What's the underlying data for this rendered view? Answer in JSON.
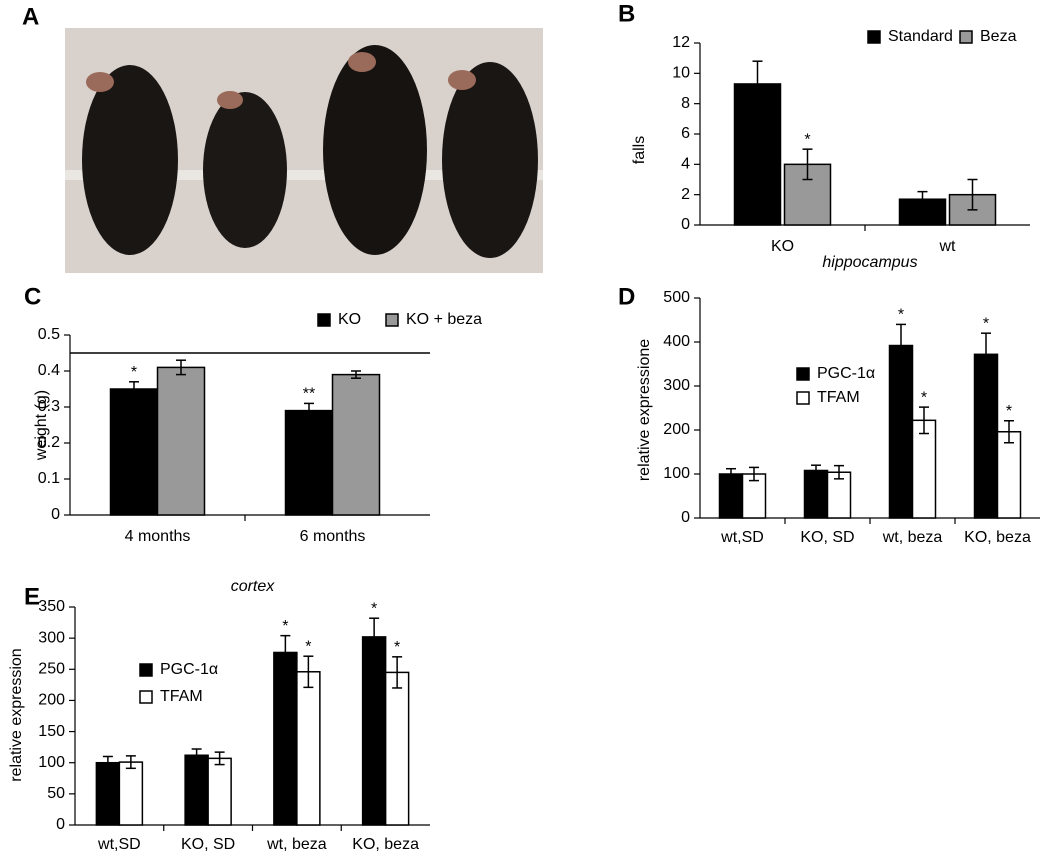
{
  "panel_labels": [
    "A",
    "B",
    "C",
    "D",
    "E"
  ],
  "chart_data": [
    {
      "type": "bar",
      "y_label": "falls",
      "categories": [
        "KO",
        "wt"
      ],
      "legend": "top-right",
      "ylim": [
        0,
        12
      ],
      "yticks": [
        0,
        2,
        4,
        6,
        8,
        10,
        12
      ],
      "series": [
        {
          "name": "Standard",
          "color": "#000000",
          "values": [
            9.3,
            1.7
          ],
          "errors": [
            1.5,
            0.5
          ],
          "annotations": [
            null,
            null
          ]
        },
        {
          "name": "Beza",
          "color": "#999999",
          "values": [
            4.0,
            2.0
          ],
          "errors": [
            1.0,
            1.0
          ],
          "annotations": [
            "*",
            null
          ]
        }
      ]
    },
    {
      "type": "bar",
      "y_label": "weight (g)",
      "categories": [
        "4 months",
        "6 months"
      ],
      "legend": "top",
      "ylim": [
        0,
        0.5
      ],
      "yticks": [
        0,
        0.1,
        0.2,
        0.3,
        0.4,
        0.5
      ],
      "reference_line": 0.45,
      "series": [
        {
          "name": "KO",
          "color": "#000000",
          "values": [
            0.35,
            0.29
          ],
          "errors": [
            0.02,
            0.02
          ],
          "annotations": [
            "*",
            "**"
          ]
        },
        {
          "name": "KO + beza",
          "color": "#999999",
          "values": [
            0.41,
            0.39
          ],
          "errors": [
            0.02,
            0.01
          ],
          "annotations": [
            null,
            null
          ]
        }
      ]
    },
    {
      "type": "bar",
      "title": "hippocampus",
      "y_label": "relative expressione",
      "categories": [
        "wt,SD",
        "KO, SD",
        "wt, beza",
        "KO, beza"
      ],
      "legend": "top-left",
      "ylim": [
        0,
        500
      ],
      "yticks": [
        0,
        100,
        200,
        300,
        400,
        500
      ],
      "series": [
        {
          "name": "PGC-1α",
          "color": "#000000",
          "values": [
            100,
            108,
            392,
            372
          ],
          "errors": [
            12,
            12,
            48,
            48
          ],
          "annotations": [
            null,
            null,
            "*",
            "*"
          ]
        },
        {
          "name": "TFAM",
          "color": "#ffffff",
          "values": [
            100,
            104,
            222,
            196
          ],
          "errors": [
            15,
            15,
            30,
            25
          ],
          "annotations": [
            null,
            null,
            "*",
            "*"
          ]
        }
      ]
    },
    {
      "type": "bar",
      "title": "cortex",
      "y_label": "relative expression",
      "categories": [
        "wt,SD",
        "KO, SD",
        "wt, beza",
        "KO, beza"
      ],
      "legend": "left",
      "ylim": [
        0,
        350
      ],
      "yticks": [
        0,
        50,
        100,
        150,
        200,
        250,
        300,
        350
      ],
      "series": [
        {
          "name": "PGC-1α",
          "color": "#000000",
          "values": [
            100,
            112,
            277,
            302
          ],
          "errors": [
            10,
            10,
            27,
            30
          ],
          "annotations": [
            null,
            null,
            "*",
            "*"
          ]
        },
        {
          "name": "TFAM",
          "color": "#ffffff",
          "values": [
            101,
            107,
            246,
            245
          ],
          "errors": [
            10,
            10,
            25,
            25
          ],
          "annotations": [
            null,
            null,
            "*",
            "*"
          ]
        }
      ]
    }
  ]
}
